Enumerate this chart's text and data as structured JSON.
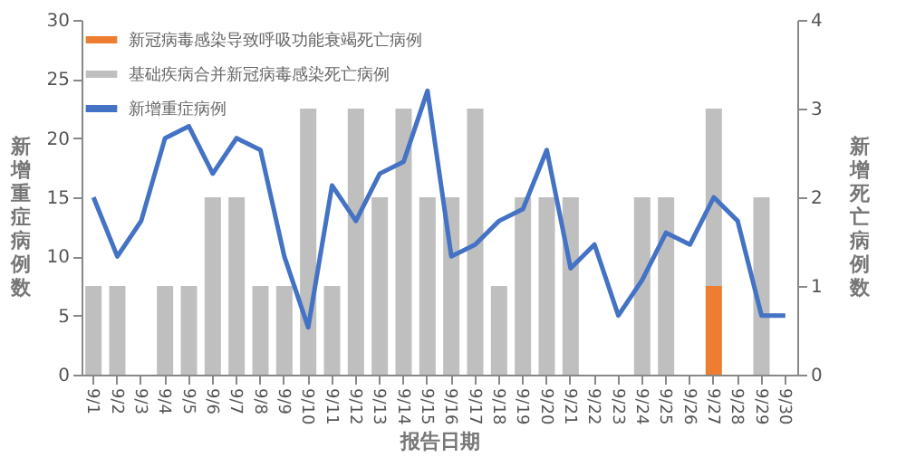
{
  "chart_data": {
    "type": "bar",
    "stacked": true,
    "xlabel": "报告日期",
    "ylabel": "新增重症病例数",
    "y2label": "新增死亡病例数",
    "categories": [
      "9/1",
      "9/2",
      "9/3",
      "9/4",
      "9/5",
      "9/6",
      "9/7",
      "9/8",
      "9/9",
      "9/10",
      "9/11",
      "9/12",
      "9/13",
      "9/14",
      "9/15",
      "9/16",
      "9/17",
      "9/18",
      "9/19",
      "9/20",
      "9/21",
      "9/22",
      "9/23",
      "9/24",
      "9/25",
      "9/26",
      "9/27",
      "9/28",
      "9/29",
      "9/30"
    ],
    "series": [
      {
        "name": "新冠病毒感染导致呼吸功能衰竭死亡病例",
        "color": "#ed7d31",
        "axis": "y2",
        "values": [
          0,
          0,
          0,
          0,
          0,
          0,
          0,
          0,
          0,
          0,
          0,
          0,
          0,
          0,
          0,
          0,
          0,
          0,
          0,
          0,
          0,
          0,
          0,
          0,
          0,
          0,
          1,
          0,
          0,
          0
        ]
      },
      {
        "name": "基础疾病合并新冠病毒感染死亡病例",
        "color": "#bfbfbf",
        "axis": "y2",
        "values": [
          1,
          1,
          0,
          1,
          1,
          2,
          2,
          1,
          1,
          3,
          1,
          3,
          2,
          3,
          2,
          2,
          3,
          1,
          2,
          2,
          2,
          0,
          0,
          2,
          2,
          0,
          2,
          0,
          2,
          0
        ]
      },
      {
        "name": "新增重症病例",
        "type": "line",
        "color": "#4472c4",
        "axis": "y",
        "values": [
          15,
          10,
          13,
          20,
          21,
          17,
          20,
          19,
          10,
          4,
          16,
          13,
          17,
          18,
          24,
          10,
          11,
          13,
          14,
          19,
          9,
          11,
          5,
          8,
          12,
          11,
          15,
          13,
          5,
          5
        ]
      }
    ],
    "ylim": [
      0,
      30
    ],
    "yticks": [
      0,
      5,
      10,
      15,
      20,
      25,
      30
    ],
    "y2lim": [
      0,
      4
    ],
    "y2ticks": [
      0,
      1,
      2,
      3,
      4
    ],
    "grid": false,
    "legend": "top left"
  }
}
